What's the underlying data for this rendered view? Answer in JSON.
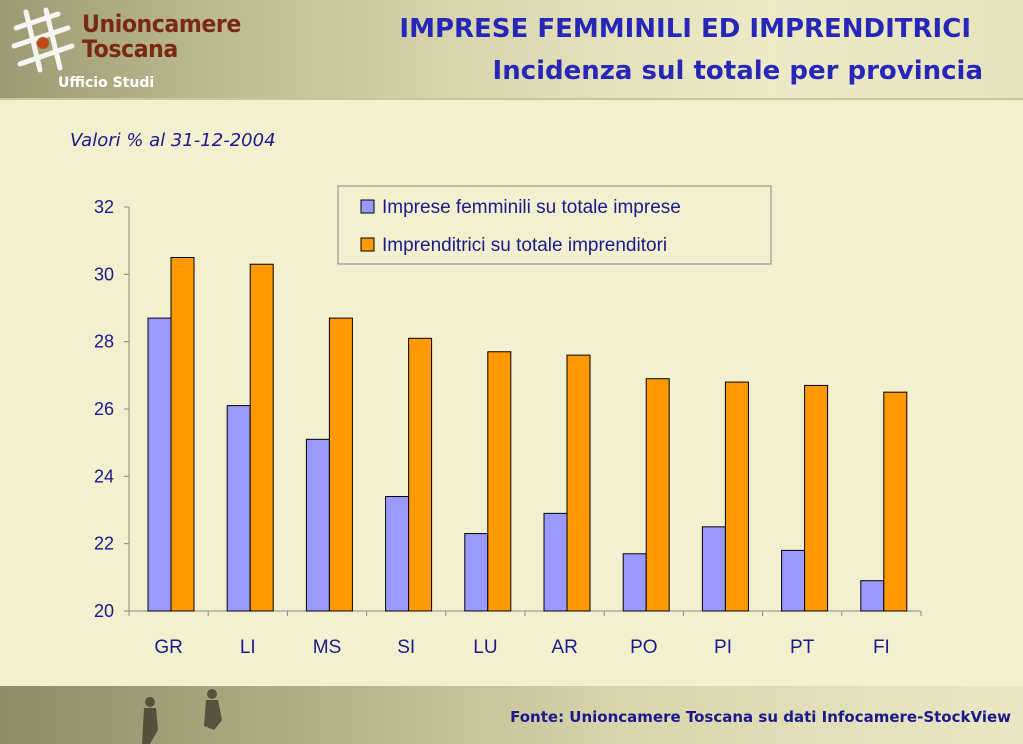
{
  "header": {
    "logo_line1": "Unioncamere",
    "logo_line2": "Toscana",
    "office": "Ufficio Studi",
    "title": "IMPRESE FEMMINILI ED IMPRENDITRICI",
    "subtitle": "Incidenza sul totale per provincia"
  },
  "date_note": "Valori % al 31-12-2004",
  "footer": {
    "source": "Fonte: Unioncamere Toscana su dati Infocamere-StockView"
  },
  "colors": {
    "series1": "#9999FF",
    "series2": "#FF9900",
    "title": "#2626B8",
    "text": "#1A1A8C",
    "logo": "#7A2A10"
  },
  "chart_data": {
    "type": "bar",
    "categories": [
      "GR",
      "LI",
      "MS",
      "SI",
      "LU",
      "AR",
      "PO",
      "PI",
      "PT",
      "FI"
    ],
    "series": [
      {
        "name": "Imprese femminili su totale imprese",
        "values": [
          28.7,
          26.1,
          25.1,
          23.4,
          22.3,
          22.9,
          21.7,
          22.5,
          21.8,
          20.9
        ]
      },
      {
        "name": "Imprenditrici su totale imprenditori",
        "values": [
          30.5,
          30.3,
          28.7,
          28.1,
          27.7,
          27.6,
          26.9,
          26.8,
          26.7,
          26.5
        ]
      }
    ],
    "yticks": [
      20,
      22,
      24,
      26,
      28,
      30,
      32
    ],
    "ylim": [
      20,
      32
    ],
    "grid": false,
    "legend_position": "top-center"
  }
}
